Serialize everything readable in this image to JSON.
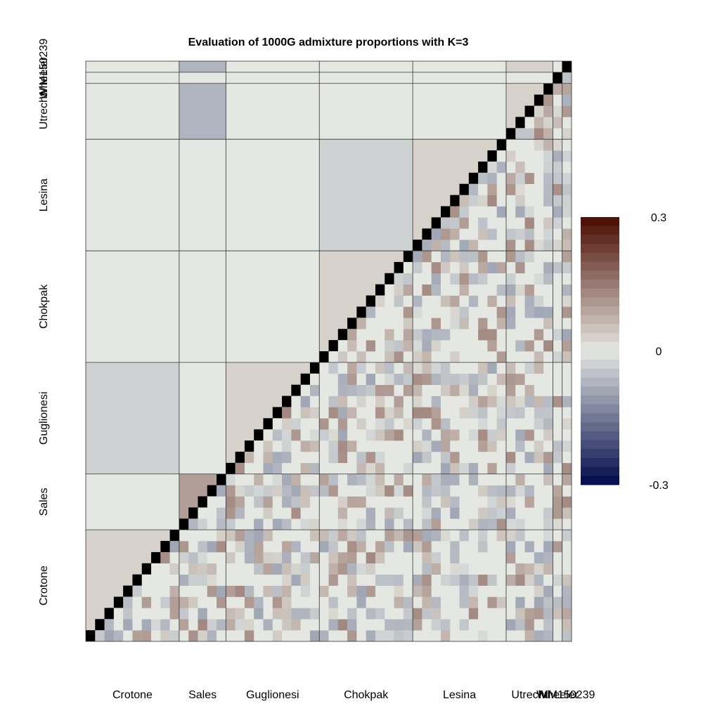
{
  "chart_data": {
    "type": "heatmap",
    "title": "Evaluation of 1000G admixture proportions with K=3",
    "xlabel": "",
    "ylabel": "",
    "groups": [
      {
        "name": "Crotone",
        "n": 10
      },
      {
        "name": "Sales",
        "n": 5
      },
      {
        "name": "Guglionesi",
        "n": 10
      },
      {
        "name": "Chokpak",
        "n": 10
      },
      {
        "name": "Lesina",
        "n": 10
      },
      {
        "name": "Utrecht",
        "n": 5
      },
      {
        "name": "Wheeler",
        "n": 1
      },
      {
        "name": "MM150239",
        "n": 1
      }
    ],
    "diagonal_value": "black",
    "lower_triangle_block_means": [
      {
        "row": "Crotone",
        "col": "Crotone",
        "value": 0.03
      },
      {
        "row": "Sales",
        "col": "Sales",
        "value": 0.1
      },
      {
        "row": "Guglionesi",
        "col": "Crotone",
        "value": -0.03
      },
      {
        "row": "Guglionesi",
        "col": "Sales",
        "value": 0.0
      },
      {
        "row": "Guglionesi",
        "col": "Guglionesi",
        "value": 0.03
      },
      {
        "row": "Chokpak",
        "col": "Chokpak",
        "value": 0.03
      },
      {
        "row": "Lesina",
        "col": "Chokpak",
        "value": -0.03
      },
      {
        "row": "Lesina",
        "col": "Lesina",
        "value": 0.03
      },
      {
        "row": "Utrecht",
        "col": "Sales",
        "value": -0.07
      },
      {
        "row": "Utrecht",
        "col": "Utrecht",
        "value": 0.03
      },
      {
        "row": "MM150239",
        "col": "Sales",
        "value": -0.07
      },
      {
        "row": "MM150239",
        "col": "Utrecht",
        "value": 0.03
      }
    ],
    "upper_triangle": "individual residuals, approx. range -0.1 to 0.15",
    "colorbar": {
      "min": -0.3,
      "max": 0.3,
      "ticks": [
        "0.3",
        "0",
        "-0.3"
      ],
      "colors": [
        "#000a4a",
        "#e5e8e2",
        "#4a0a00"
      ]
    },
    "x_tick_labels": [
      "Crotone",
      "Sales",
      "Guglionesi",
      "Chokpak",
      "Lesina",
      "Utrecht",
      "Wheeler",
      "MM150239"
    ],
    "y_tick_labels": [
      "Crotone",
      "Sales",
      "Guglionesi",
      "Chokpak",
      "Lesina",
      "Utrecht",
      "Wheeler",
      "MM150239"
    ]
  }
}
